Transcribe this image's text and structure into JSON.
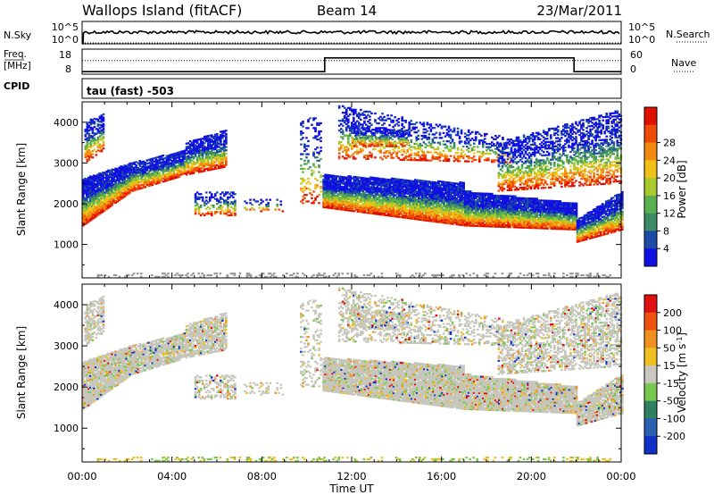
{
  "header": {
    "title": "Wallops Island (fitACF)",
    "beam": "Beam 14",
    "date": "23/Mar/2011"
  },
  "nsky_panel": {
    "left_label": "N.Sky",
    "left_ticks": [
      "10^5",
      "10^0"
    ],
    "right_ticks": [
      "10^5",
      "10^0"
    ],
    "right_label": "N.Search"
  },
  "freq_panel": {
    "left_label_1": "Freq.",
    "left_label_2": "[MHz]",
    "left_ticks": [
      "18",
      "8"
    ],
    "right_ticks": [
      "60",
      "0"
    ],
    "right_label": "Nave",
    "freq_step_hours": [
      10.8,
      21.9
    ],
    "freq_low": 9,
    "freq_high": 14.5
  },
  "cpid_panel": {
    "label": "CPID",
    "text": "tau (fast) -503"
  },
  "chart_data": [
    {
      "type": "heatmap",
      "name": "power",
      "ylabel": "Slant Range [km]",
      "y_ticks": [
        "1000",
        "2000",
        "3000",
        "4000"
      ],
      "y_tick_values": [
        1000,
        2000,
        3000,
        4000
      ],
      "ylim": [
        180,
        4500
      ],
      "xlim": [
        0,
        24
      ],
      "colorbar_label": "Power [dB]",
      "colorbar_ticks": [
        "4",
        "8",
        "12",
        "16",
        "20",
        "24",
        "28"
      ],
      "colorbar_colors": [
        "#1010e0",
        "#1c4ca8",
        "#3f8a66",
        "#5aaf4e",
        "#a9c92c",
        "#f0c018",
        "#f38a10",
        "#ee4a08",
        "#e01000"
      ]
    },
    {
      "type": "heatmap",
      "name": "velocity",
      "ylabel": "Velocity [m s^-1]",
      "y_axis_label": "Slant Range [km]",
      "y_ticks": [
        "1000",
        "2000",
        "3000",
        "4000"
      ],
      "y_tick_values": [
        1000,
        2000,
        3000,
        4000
      ],
      "ylim": [
        180,
        4500
      ],
      "xlim": [
        0,
        24
      ],
      "colorbar_label": "Velocity [m s",
      "colorbar_label_sup": "-1",
      "colorbar_label_end": "]",
      "colorbar_ticks": [
        "200",
        "100",
        "50",
        "15",
        "-15",
        "-50",
        "-100",
        "-200"
      ],
      "colorbar_colors": [
        "#1030c8",
        "#2a60b0",
        "#2e8060",
        "#78c850",
        "#c8c8c0",
        "#f0c020",
        "#f09020",
        "#f05010",
        "#e01010"
      ]
    }
  ],
  "x_axis": {
    "label": "Time UT",
    "ticks": [
      "00:00",
      "04:00",
      "08:00",
      "12:00",
      "16:00",
      "20:00",
      "00:00"
    ],
    "tick_hours": [
      0,
      4,
      8,
      12,
      16,
      20,
      24
    ]
  },
  "colors": {
    "ground_scatter": "#9a9a9a",
    "velocity_grey": "#c6c6bc"
  }
}
